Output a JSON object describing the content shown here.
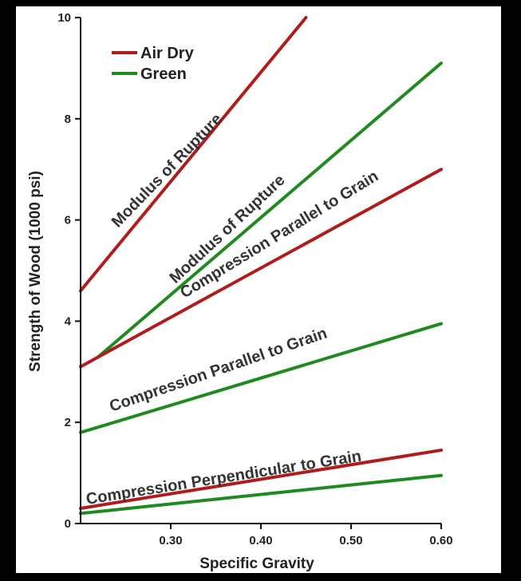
{
  "chart_data": {
    "type": "line",
    "xlabel": "Specific Gravity",
    "ylabel": "Strength of Wood (1000 psi)",
    "xlim": [
      0.2,
      0.6
    ],
    "ylim": [
      0,
      10
    ],
    "xticks": [
      {
        "value": 0.3,
        "label": "0.30"
      },
      {
        "value": 0.4,
        "label": "0.40"
      },
      {
        "value": 0.5,
        "label": "0.50"
      },
      {
        "value": 0.6,
        "label": "0.60"
      }
    ],
    "yticks": [
      {
        "value": 0,
        "label": "0"
      },
      {
        "value": 2,
        "label": "2"
      },
      {
        "value": 4,
        "label": "4"
      },
      {
        "value": 6,
        "label": "6"
      },
      {
        "value": 8,
        "label": "8"
      },
      {
        "value": 10,
        "label": "10"
      }
    ],
    "legend": {
      "position": "top-left",
      "entries": [
        {
          "name": "Air Dry",
          "color": "#b01c1c"
        },
        {
          "name": "Green",
          "color": "#1f8a1f"
        }
      ]
    },
    "colors": {
      "air_dry": "#b01c1c",
      "green": "#1f8a1f",
      "background": "#ffffff",
      "frame": "#000000"
    },
    "series": [
      {
        "label": "Modulus of Rupture",
        "condition": "Air Dry",
        "color": "#b01c1c",
        "x": [
          0.2,
          0.45
        ],
        "y": [
          4.6,
          10.0
        ]
      },
      {
        "label": "Modulus of Rupture",
        "condition": "Green",
        "color": "#1f8a1f",
        "x": [
          0.22,
          0.6
        ],
        "y": [
          3.3,
          9.1
        ]
      },
      {
        "label": "Compression Parallel to Grain",
        "condition": "Air Dry",
        "color": "#b01c1c",
        "x": [
          0.2,
          0.6
        ],
        "y": [
          3.1,
          7.0
        ]
      },
      {
        "label": "Compression Parallel to Grain",
        "condition": "Green",
        "color": "#1f8a1f",
        "x": [
          0.2,
          0.6
        ],
        "y": [
          1.8,
          3.95
        ]
      },
      {
        "label": "Compression Perpendicular to Grain",
        "condition": "Air Dry",
        "color": "#b01c1c",
        "x": [
          0.2,
          0.6
        ],
        "y": [
          0.3,
          1.45
        ]
      },
      {
        "label": "Compression Perpendicular to Grain",
        "condition": "Green",
        "color": "#1f8a1f",
        "x": [
          0.2,
          0.6
        ],
        "y": [
          0.2,
          0.95
        ]
      }
    ],
    "annotations": [
      "Modulus of Rupture",
      "Modulus of Rupture",
      "Compression Parallel to Grain",
      "Compression Parallel to Grain",
      "Compression Perpendicular to Grain"
    ]
  }
}
